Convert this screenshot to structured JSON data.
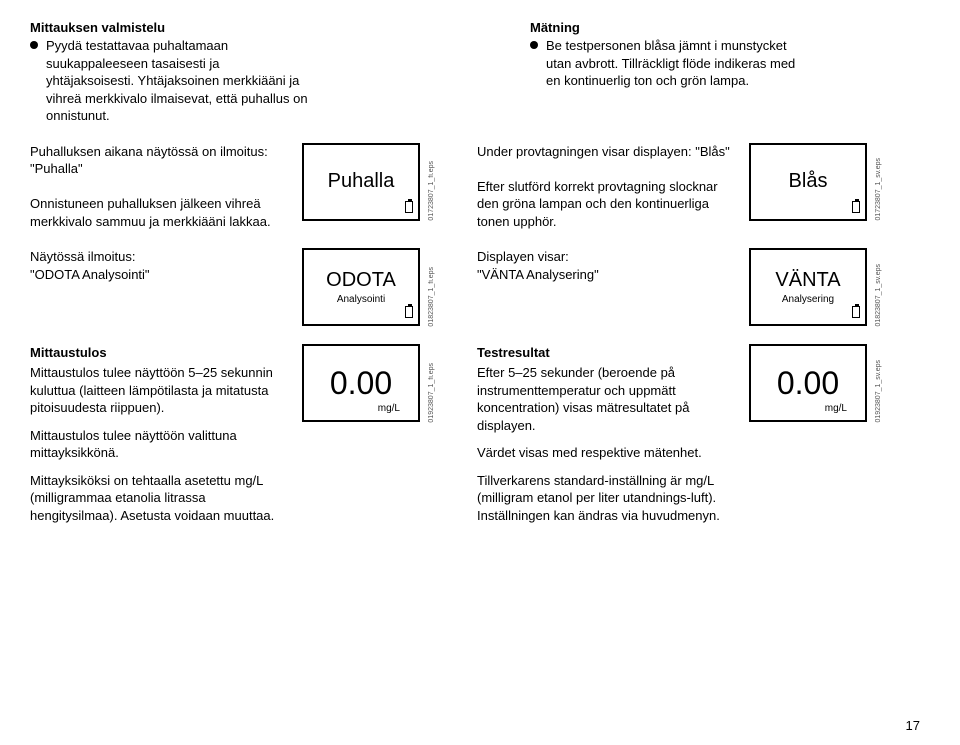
{
  "top_left": {
    "heading": "Mittauksen valmistelu",
    "bullet": "Pyydä testattavaa puhaltamaan suukappaleeseen tasaisesti ja yhtäjaksoisesti. Yhtäjaksoinen merkkiääni ja vihreä merkkivalo ilmaisevat, että puhallus on onnistunut."
  },
  "top_right": {
    "heading": "Mätning",
    "bullet": "Be testpersonen blåsa jämnt i munstycket utan avbrott. Tillräckligt flöde indikeras med en kontinuerlig ton och grön lampa."
  },
  "row1": {
    "left_text": "Puhalluksen aikana näytössä on ilmoitus: \"Puhalla\"\n\nOnnistuneen puhalluksen jälkeen vihreä merkkivalo sammuu ja merkkiääni lakkaa.",
    "left_display": "Puhalla",
    "left_eps": "01723807_1_fi.eps",
    "right_text": "Under provtagningen visar displayen: \"Blås\"\n\nEfter slutförd korrekt provtagning slocknar den gröna lampan och den kontinuerliga tonen upphör.",
    "right_display": "Blås",
    "right_eps": "01723807_1_sv.eps"
  },
  "row2": {
    "left_text": "Näytössä ilmoitus:\n\"ODOTA Analysointi\"",
    "left_display_main": "ODOTA",
    "left_display_sub": "Analysointi",
    "left_eps": "01823807_1_fi.eps",
    "right_text": "Displayen visar:\n\"VÄNTA Analysering\"",
    "right_display_main": "VÄNTA",
    "right_display_sub": "Analysering",
    "right_eps": "01823807_1_sv.eps"
  },
  "row3": {
    "left_heading": "Mittaustulos",
    "left_text1": "Mittaustulos tulee näyttöön 5–25 sekunnin kuluttua (laitteen lämpötilasta ja mitatusta pitoisuudesta riippuen).",
    "left_text2": "Mittaustulos tulee näyttöön valittuna mittayksikkönä.",
    "left_text3": "Mittayksiköksi on tehtaalla asetettu mg/L (milligrammaa etanolia litrassa hengitysilmaa). Asetusta voidaan muuttaa.",
    "left_display_main": "0.00",
    "left_display_unit": "mg/L",
    "left_eps": "01923807_1_fi.eps",
    "right_heading": "Testresultat",
    "right_text1": "Efter 5–25 sekunder (beroende på instrumenttemperatur och uppmätt koncentration) visas mätresultatet på displayen.",
    "right_text2": "Värdet visas med respektive mätenhet.",
    "right_text3": "Tillverkarens standard-inställning är mg/L (milligram etanol per liter utandnings-luft). Inställningen kan ändras via huvudmenyn.",
    "right_display_main": "0.00",
    "right_display_unit": "mg/L",
    "right_eps": "01923807_1_sv.eps"
  },
  "page_number": "17"
}
